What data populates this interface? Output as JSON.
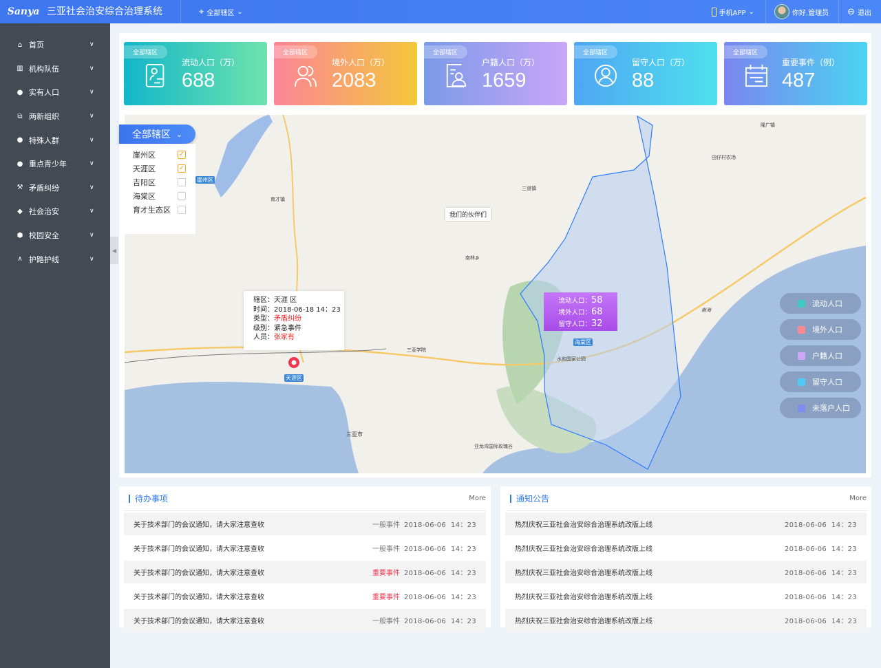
{
  "header": {
    "logo_text": "Sanya",
    "title": "三亚社会治安综合治理系统",
    "district_selector": "全部辖区",
    "mobile_app": "手机APP",
    "greeting": "你好,管理员",
    "logout": "退出"
  },
  "sidebar": {
    "items": [
      {
        "label": "首页",
        "icon": "home-icon"
      },
      {
        "label": "机构队伍",
        "icon": "building-icon"
      },
      {
        "label": "实有人口",
        "icon": "user-icon"
      },
      {
        "label": "两新组织",
        "icon": "org-chart-icon"
      },
      {
        "label": "特殊人群",
        "icon": "user-tag-icon"
      },
      {
        "label": "重点青少年",
        "icon": "user-icon"
      },
      {
        "label": "矛盾纠纷",
        "icon": "gavel-icon"
      },
      {
        "label": "社会治安",
        "icon": "shield-icon"
      },
      {
        "label": "校园安全",
        "icon": "badge-icon"
      },
      {
        "label": "护路护线",
        "icon": "road-icon"
      }
    ]
  },
  "stats": [
    {
      "tag": "全部辖区",
      "label": "流动人口（万）",
      "value": "688",
      "icon": "mobile-person-icon",
      "colors": [
        "#12b6c9",
        "#6ee3ad"
      ]
    },
    {
      "tag": "全部辖区",
      "label": "境外人口（万）",
      "value": "2083",
      "icon": "users-icon",
      "colors": [
        "#fc8597",
        "#f4c73b"
      ]
    },
    {
      "tag": "全部辖区",
      "label": "户籍人口（万）",
      "value": "1659",
      "icon": "id-card-icon",
      "colors": [
        "#7a9ae8",
        "#c9a6f8"
      ]
    },
    {
      "tag": "全部辖区",
      "label": "留守人口（万）",
      "value": "88",
      "icon": "person-circle-icon",
      "colors": [
        "#4fa6f2",
        "#4fe0ee"
      ]
    },
    {
      "tag": "全部辖区",
      "label": "重要事件（例）",
      "value": "487",
      "icon": "calendar-icon",
      "colors": [
        "#7a86ee",
        "#4bd4f2"
      ]
    }
  ],
  "district_filter": {
    "button": "全部辖区",
    "options": [
      {
        "label": "崖州区",
        "checked": true
      },
      {
        "label": "天涯区",
        "checked": true
      },
      {
        "label": "吉阳区",
        "checked": false
      },
      {
        "label": "海棠区",
        "checked": false
      },
      {
        "label": "育才生态区",
        "checked": false
      }
    ]
  },
  "map": {
    "labels": [
      "崖州区",
      "天涯区",
      "海棠区",
      "三亚市",
      "南海",
      "育才镇",
      "三道镇",
      "南林乡",
      "田仔村农场",
      "隆广镇",
      "三亚学院",
      "亚龙湾国际玫瑰谷",
      "水和国家公园"
    ],
    "bubble": "我们的伙伴们",
    "event_info": {
      "rows": [
        {
          "k": "辖区：",
          "v": "天涯 区"
        },
        {
          "k": "时间：",
          "v": "2018-06-18 14：23"
        },
        {
          "k": "类型：",
          "v": "矛盾纠纷",
          "red": true
        },
        {
          "k": "级别：",
          "v": "紧急事件"
        },
        {
          "k": "人员：",
          "v": "张家有",
          "red": true
        }
      ]
    },
    "population_tip": [
      {
        "k": "流动人口：",
        "v": "58"
      },
      {
        "k": "境外人口：",
        "v": "68"
      },
      {
        "k": "留守人口：",
        "v": "32"
      }
    ],
    "legend": [
      {
        "label": "流动人口",
        "color": "#3ecac0"
      },
      {
        "label": "境外人口",
        "color": "#fc8a93"
      },
      {
        "label": "户籍人口",
        "color": "#cfa7f8"
      },
      {
        "label": "留守人口",
        "color": "#4fcaf2"
      },
      {
        "label": "未落户人口",
        "color": "#7f8cf0"
      }
    ]
  },
  "todo": {
    "title": "待办事项",
    "more": "More",
    "rows": [
      {
        "text": "关于技术部门的会议通知，请大家注意查收",
        "level": "一般事件",
        "time": "2018-06-06  14：23"
      },
      {
        "text": "关于技术部门的会议通知，请大家注意查收",
        "level": "一般事件",
        "time": "2018-06-06  14：23"
      },
      {
        "text": "关于技术部门的会议通知，请大家注意查收",
        "level": "重要事件",
        "time": "2018-06-06  14：23",
        "important": true
      },
      {
        "text": "关于技术部门的会议通知，请大家注意查收",
        "level": "重要事件",
        "time": "2018-06-06  14：23",
        "important": true
      },
      {
        "text": "关于技术部门的会议通知，请大家注意查收",
        "level": "一般事件",
        "time": "2018-06-06  14：23"
      }
    ]
  },
  "notice": {
    "title": "通知公告",
    "more": "More",
    "rows": [
      {
        "text": "热烈庆祝三亚社会治安综合治理系统改版上线",
        "time": "2018-06-06  14：23"
      },
      {
        "text": "热烈庆祝三亚社会治安综合治理系统改版上线",
        "time": "2018-06-06  14：23"
      },
      {
        "text": "热烈庆祝三亚社会治安综合治理系统改版上线",
        "time": "2018-06-06  14：23"
      },
      {
        "text": "热烈庆祝三亚社会治安综合治理系统改版上线",
        "time": "2018-06-06  14：23"
      },
      {
        "text": "热烈庆祝三亚社会治安综合治理系统改版上线",
        "time": "2018-06-06  14：23"
      }
    ]
  }
}
